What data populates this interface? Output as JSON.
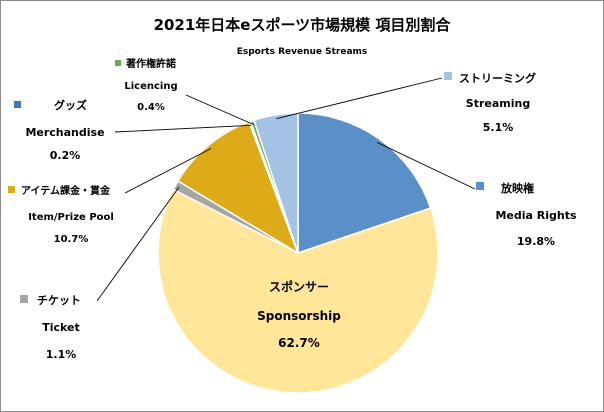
{
  "chart_data": {
    "type": "pie",
    "title": "2021年日本eスポーツ市場規模 項目別割合",
    "subtitle": "Esports Revenue Streams",
    "start_angle_deg": 0,
    "direction": "clockwise",
    "slices": [
      {
        "name_ja": "放映権",
        "name_en": "Media Rights",
        "value": 19.8,
        "value_label": "19.8%",
        "color": "#5b8fc7"
      },
      {
        "name_ja": "スポンサー",
        "name_en": "Sponsorship",
        "value": 62.7,
        "value_label": "62.7%",
        "color": "#ffe699"
      },
      {
        "name_ja": "チケット",
        "name_en": "Ticket",
        "value": 1.1,
        "value_label": "1.1%",
        "color": "#a5a5a5"
      },
      {
        "name_ja": "アイテム課金・賞金",
        "name_en": "Item/Prize Pool",
        "value": 10.7,
        "value_label": "10.7%",
        "color": "#dcab17"
      },
      {
        "name_ja": "グッズ",
        "name_en": "Merchandise",
        "value": 0.2,
        "value_label": "0.2%",
        "color": "#4472c4"
      },
      {
        "name_ja": "著作権許諾",
        "name_en": "Licencing",
        "value": 0.4,
        "value_label": "0.4%",
        "color": "#6aa84f"
      },
      {
        "name_ja": "ストリーミング",
        "name_en": "Streaming",
        "value": 5.1,
        "value_label": "5.1%",
        "color": "#a4c2e4"
      }
    ]
  }
}
